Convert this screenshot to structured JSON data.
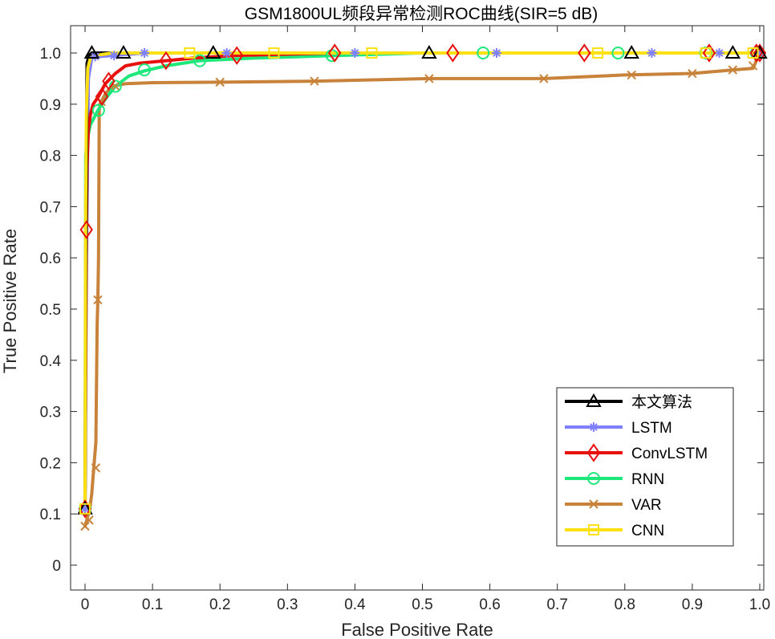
{
  "chart_data": {
    "type": "line",
    "title": "GSM1800UL频段异常检测ROC曲线(SIR=5 dB)",
    "xlabel": "False Positive Rate",
    "ylabel": "True Positive Rate",
    "xlim": [
      0,
      1
    ],
    "ylim": [
      -0.05,
      1.05
    ],
    "xticks": [
      "0",
      "0.1",
      "0.2",
      "0.3",
      "0.4",
      "0.5",
      "0.6",
      "0.7",
      "0.8",
      "0.9",
      "1.0"
    ],
    "yticks": [
      "0",
      "0.1",
      "0.2",
      "0.3",
      "0.4",
      "0.5",
      "0.6",
      "0.7",
      "0.8",
      "0.9",
      "1.0"
    ],
    "grid": false,
    "legend_position": "bottom-right",
    "series": [
      {
        "name": "本文算法",
        "color": "#000000",
        "marker": "triangle",
        "x": [
          0,
          0.001,
          0.003,
          0.006,
          0.01,
          0.03,
          0.057,
          0.1,
          0.19,
          0.3,
          0.51,
          0.7,
          0.81,
          0.9,
          0.96,
          1.0
        ],
        "y": [
          0.11,
          0.5,
          0.98,
          0.995,
          1.0,
          1.0,
          1.0,
          1.0,
          1.0,
          1.0,
          1.0,
          1.0,
          1.0,
          1.0,
          1.0,
          1.0
        ],
        "markers": [
          [
            0.0,
            0.11
          ],
          [
            0.01,
            1.0
          ],
          [
            0.057,
            1.0
          ],
          [
            0.19,
            1.0
          ],
          [
            0.51,
            1.0
          ],
          [
            0.81,
            1.0
          ],
          [
            0.96,
            1.0
          ],
          [
            1.0,
            1.0
          ]
        ]
      },
      {
        "name": "LSTM",
        "color": "#8080ff",
        "marker": "asterisk",
        "x": [
          0,
          0.002,
          0.005,
          0.01,
          0.02,
          0.04,
          0.088,
          0.21,
          0.4,
          0.61,
          0.84,
          0.94,
          1.0
        ],
        "y": [
          0.11,
          0.6,
          0.95,
          0.99,
          0.993,
          0.995,
          1.0,
          1.0,
          1.0,
          1.0,
          1.0,
          1.0,
          1.0
        ],
        "markers": [
          [
            0.0,
            0.11
          ],
          [
            0.015,
            0.993
          ],
          [
            0.043,
            0.995
          ],
          [
            0.088,
            1.0
          ],
          [
            0.21,
            1.0
          ],
          [
            0.4,
            1.0
          ],
          [
            0.61,
            1.0
          ],
          [
            0.84,
            1.0
          ],
          [
            0.94,
            1.0
          ],
          [
            1.0,
            1.0
          ]
        ]
      },
      {
        "name": "ConvLSTM",
        "color": "#e8100c",
        "marker": "diamond",
        "x": [
          0,
          0.002,
          0.003,
          0.005,
          0.008,
          0.012,
          0.02,
          0.03,
          0.045,
          0.06,
          0.08,
          0.12,
          0.16,
          0.22,
          0.37,
          0.54,
          0.74,
          0.92,
          0.99,
          1.0
        ],
        "y": [
          0.11,
          0.66,
          0.78,
          0.85,
          0.88,
          0.9,
          0.915,
          0.94,
          0.96,
          0.975,
          0.98,
          0.985,
          0.99,
          0.995,
          1.0,
          1.0,
          1.0,
          1.0,
          1.0,
          1.0
        ],
        "markers": [
          [
            0.0,
            0.11
          ],
          [
            0.002,
            0.655
          ],
          [
            0.025,
            0.915
          ],
          [
            0.035,
            0.945
          ],
          [
            0.12,
            0.985
          ],
          [
            0.225,
            0.995
          ],
          [
            0.37,
            1.0
          ],
          [
            0.545,
            1.0
          ],
          [
            0.74,
            1.0
          ],
          [
            0.925,
            1.0
          ],
          [
            0.995,
            1.0
          ],
          [
            1.0,
            1.0
          ]
        ]
      },
      {
        "name": "RNN",
        "color": "#1ee87a",
        "marker": "circle",
        "x": [
          0,
          0.001,
          0.003,
          0.008,
          0.02,
          0.03,
          0.045,
          0.065,
          0.088,
          0.12,
          0.17,
          0.25,
          0.37,
          0.5,
          0.59,
          0.79,
          0.92,
          1.0
        ],
        "y": [
          0.11,
          0.8,
          0.83,
          0.86,
          0.89,
          0.91,
          0.935,
          0.955,
          0.965,
          0.975,
          0.985,
          0.99,
          0.995,
          1.0,
          1.0,
          1.0,
          1.0,
          1.0
        ],
        "markers": [
          [
            0.0,
            0.11
          ],
          [
            0.02,
            0.888
          ],
          [
            0.045,
            0.935
          ],
          [
            0.088,
            0.967
          ],
          [
            0.17,
            0.985
          ],
          [
            0.366,
            0.995
          ],
          [
            0.59,
            1.0
          ],
          [
            0.79,
            1.0
          ],
          [
            0.92,
            1.0
          ],
          [
            0.995,
            1.0
          ]
        ]
      },
      {
        "name": "VAR",
        "color": "#c8823a",
        "marker": "x",
        "x": [
          0,
          0.003,
          0.007,
          0.01,
          0.013,
          0.016,
          0.018,
          0.019,
          0.02,
          0.021,
          0.024,
          0.03,
          0.04,
          0.06,
          0.1,
          0.2,
          0.34,
          0.51,
          0.68,
          0.8,
          0.9,
          0.96,
          0.99,
          1.0
        ],
        "y": [
          0.076,
          0.09,
          0.11,
          0.14,
          0.19,
          0.24,
          0.47,
          0.52,
          0.6,
          0.89,
          0.905,
          0.92,
          0.935,
          0.94,
          0.942,
          0.943,
          0.945,
          0.95,
          0.95,
          0.957,
          0.96,
          0.967,
          0.97,
          1.0
        ],
        "markers": [
          [
            0.0,
            0.076
          ],
          [
            0.006,
            0.088
          ],
          [
            0.016,
            0.19
          ],
          [
            0.019,
            0.518
          ],
          [
            0.024,
            0.905
          ],
          [
            0.045,
            0.935
          ],
          [
            0.2,
            0.943
          ],
          [
            0.34,
            0.945
          ],
          [
            0.51,
            0.95
          ],
          [
            0.68,
            0.95
          ],
          [
            0.81,
            0.957
          ],
          [
            0.9,
            0.96
          ],
          [
            0.96,
            0.967
          ],
          [
            0.99,
            0.975
          ],
          [
            1.0,
            1.0
          ]
        ]
      },
      {
        "name": "CNN",
        "color": "#fde113",
        "marker": "square",
        "x": [
          0,
          0.001,
          0.002,
          0.004,
          0.008,
          0.015,
          0.04,
          0.09,
          0.155,
          0.28,
          0.42,
          0.6,
          0.76,
          0.92,
          0.99,
          1.0
        ],
        "y": [
          0.11,
          0.7,
          0.88,
          0.97,
          0.99,
          0.995,
          1.0,
          1.0,
          1.0,
          1.0,
          1.0,
          1.0,
          1.0,
          1.0,
          1.0,
          1.0
        ],
        "markers": [
          [
            0.0,
            0.11
          ],
          [
            0.155,
            1.0
          ],
          [
            0.28,
            1.0
          ],
          [
            0.425,
            1.0
          ],
          [
            0.76,
            1.0
          ],
          [
            0.92,
            1.0
          ],
          [
            0.99,
            1.0
          ]
        ]
      }
    ]
  }
}
